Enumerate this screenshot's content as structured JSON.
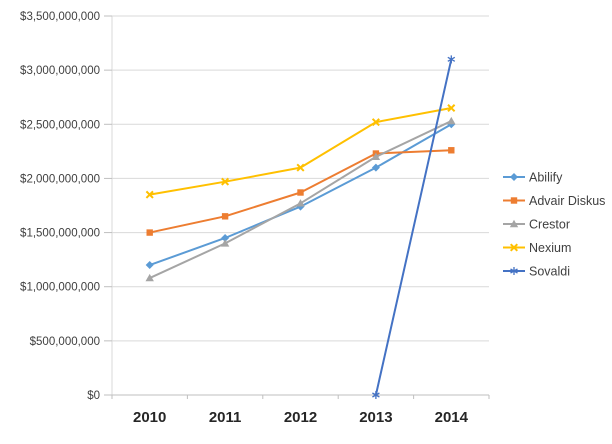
{
  "chart_data": {
    "type": "line",
    "title": "",
    "xlabel": "",
    "ylabel": "",
    "categories": [
      "2010",
      "2011",
      "2012",
      "2013",
      "2014"
    ],
    "series": [
      {
        "name": "Abilify",
        "color": "#5B9BD5",
        "marker": "diamond",
        "values": [
          1200000000,
          1450000000,
          1740000000,
          2100000000,
          2500000000
        ]
      },
      {
        "name": "Advair Diskus",
        "color": "#ED7D31",
        "marker": "square",
        "values": [
          1500000000,
          1650000000,
          1870000000,
          2230000000,
          2260000000
        ]
      },
      {
        "name": "Crestor",
        "color": "#A5A5A5",
        "marker": "triangle",
        "values": [
          1080000000,
          1400000000,
          1770000000,
          2200000000,
          2530000000
        ]
      },
      {
        "name": "Nexium",
        "color": "#FFC000",
        "marker": "x",
        "values": [
          1850000000,
          1970000000,
          2100000000,
          2520000000,
          2650000000
        ]
      },
      {
        "name": "Sovaldi",
        "color": "#4472C4",
        "marker": "asterisk",
        "values": [
          null,
          null,
          null,
          0,
          3100000000
        ]
      }
    ],
    "y_axis": {
      "min": 0,
      "max": 3500000000,
      "step": 500000000,
      "tick_labels": [
        "$0",
        "$500,000,000",
        "$1,000,000,000",
        "$1,500,000,000",
        "$2,000,000,000",
        "$2,500,000,000",
        "$3,000,000,000",
        "$3,500,000,000"
      ]
    },
    "x_axis": {
      "tick_labels": [
        "2010",
        "2011",
        "2012",
        "2013",
        "2014"
      ]
    },
    "legend": {
      "position": "right",
      "entries": [
        "Abilify",
        "Advair Diskus",
        "Crestor",
        "Nexium",
        "Sovaldi"
      ]
    },
    "grid": true,
    "colors": {
      "gridline": "#D9D9D9",
      "axis_line": "#BFBFBF",
      "background": "#FFFFFF",
      "tick_text": "#404040",
      "category_text": "#262626"
    }
  }
}
